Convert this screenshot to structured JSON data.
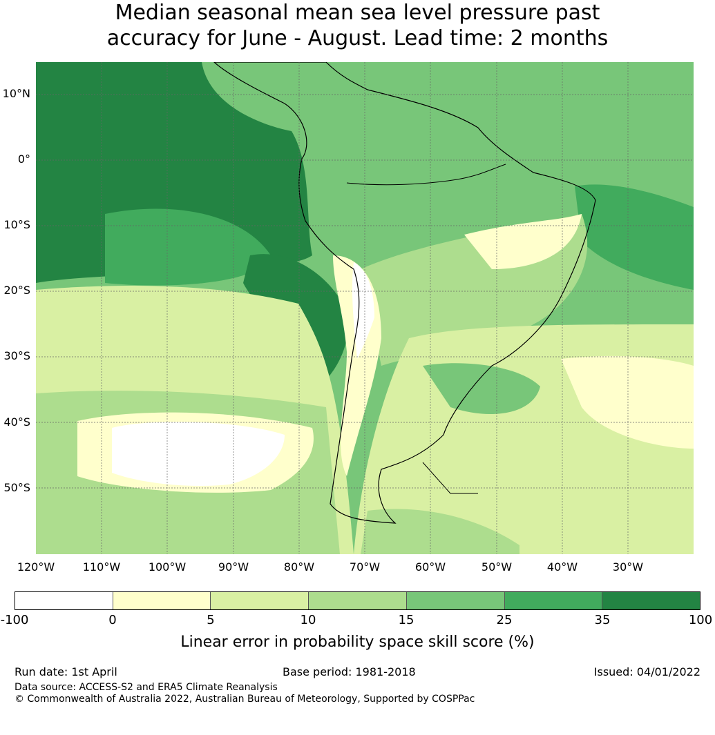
{
  "title_line1": "Median seasonal mean sea level pressure past",
  "title_line2": "accuracy for June - August. Lead time: 2 months",
  "lat_labels": [
    "10°N",
    "0°",
    "10°S",
    "20°S",
    "30°S",
    "40°S",
    "50°S"
  ],
  "lon_labels": [
    "120°W",
    "110°W",
    "100°W",
    "90°W",
    "80°W",
    "70°W",
    "60°W",
    "50°W",
    "40°W",
    "30°W"
  ],
  "colorbar": {
    "ticks": [
      "-100",
      "0",
      "5",
      "10",
      "15",
      "25",
      "35",
      "100"
    ],
    "colors": [
      "#ffffff",
      "#ffffcc",
      "#d9f0a3",
      "#addd8e",
      "#78c679",
      "#41ab5d",
      "#238443"
    ],
    "label": "Linear error in probability space skill score (%)"
  },
  "footer": {
    "run_date": "Run date: 1st April",
    "base_period": "Base period: 1981-2018",
    "issued": "Issued: 04/01/2022",
    "data_source": "Data source: ACCESS-S2 and ERA5 Climate Reanalysis",
    "copyright": "© Commonwealth of Australia 2022, Australian Bureau of Meteorology, Supported by COSPPac"
  }
}
